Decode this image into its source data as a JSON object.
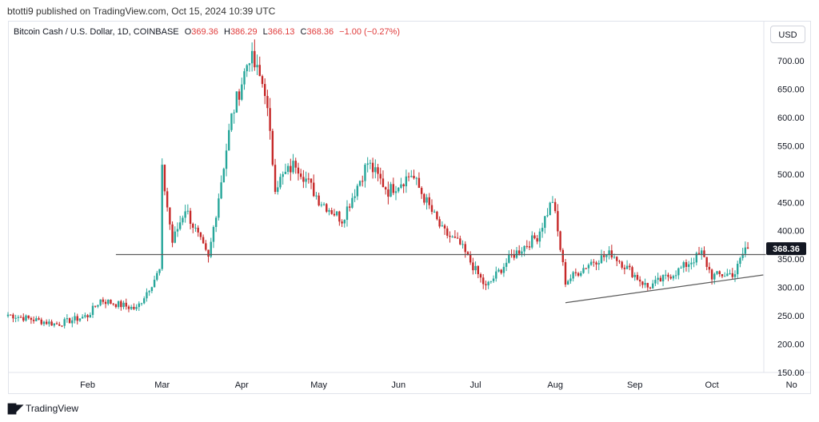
{
  "header": {
    "publisher": "btotti9 published on TradingView.com, Oct 15, 2024 10:39 UTC"
  },
  "legend": {
    "symbol": "Bitcoin Cash / U.S. Dollar, 1D, COINBASE",
    "open_label": "O",
    "open": "369.36",
    "high_label": "H",
    "high": "386.29",
    "low_label": "L",
    "low": "366.13",
    "close_label": "C",
    "close": "368.36",
    "change": "−1.00 (−0.27%)"
  },
  "currency_button": "USD",
  "footer": {
    "brand": "TradingView",
    "brand_icon": "tradingview-logo-icon"
  },
  "colors": {
    "up": "#26a69a",
    "down": "#c62828",
    "trendline": "#5b5b5b",
    "price_badge_bg": "#131722",
    "price_badge_text": "#ffffff"
  },
  "chart_data": {
    "type": "candlestick",
    "price_scale": {
      "ylim": [
        150,
        730
      ],
      "ticks": [
        "700.00",
        "650.00",
        "600.00",
        "550.00",
        "500.00",
        "450.00",
        "400.00",
        "350.00",
        "300.00",
        "250.00",
        "200.00",
        "150.00"
      ]
    },
    "time_axis": {
      "labels": [
        "Feb",
        "Mar",
        "Apr",
        "May",
        "Jun",
        "Jul",
        "Aug",
        "Sep",
        "Oct",
        "No"
      ]
    },
    "current_price_label": "368.36",
    "current_price": 368.36,
    "key_points": [
      {
        "date": "2024-01-01",
        "close": 252
      },
      {
        "date": "2024-01-20",
        "close": 235
      },
      {
        "date": "2024-02-01",
        "close": 250
      },
      {
        "date": "2024-02-06",
        "close": 278
      },
      {
        "date": "2024-02-20",
        "close": 262
      },
      {
        "date": "2024-02-29",
        "close": 330
      },
      {
        "date": "2024-03-01",
        "close": 505
      },
      {
        "date": "2024-03-05",
        "close": 380
      },
      {
        "date": "2024-03-10",
        "close": 440
      },
      {
        "date": "2024-03-19",
        "close": 350
      },
      {
        "date": "2024-03-28",
        "close": 600
      },
      {
        "date": "2024-04-04",
        "close": 710
      },
      {
        "date": "2024-04-10",
        "close": 650
      },
      {
        "date": "2024-04-14",
        "close": 480
      },
      {
        "date": "2024-04-22",
        "close": 520
      },
      {
        "date": "2024-05-01",
        "close": 455
      },
      {
        "date": "2024-05-10",
        "close": 420
      },
      {
        "date": "2024-05-20",
        "close": 520
      },
      {
        "date": "2024-05-28",
        "close": 470
      },
      {
        "date": "2024-06-06",
        "close": 500
      },
      {
        "date": "2024-06-18",
        "close": 400
      },
      {
        "date": "2024-06-25",
        "close": 375
      },
      {
        "date": "2024-07-05",
        "close": 300
      },
      {
        "date": "2024-07-15",
        "close": 355
      },
      {
        "date": "2024-07-25",
        "close": 390
      },
      {
        "date": "2024-07-31",
        "close": 455
      },
      {
        "date": "2024-08-05",
        "close": 310
      },
      {
        "date": "2024-08-15",
        "close": 345
      },
      {
        "date": "2024-08-23",
        "close": 360
      },
      {
        "date": "2024-09-06",
        "close": 300
      },
      {
        "date": "2024-09-18",
        "close": 330
      },
      {
        "date": "2024-09-27",
        "close": 360
      },
      {
        "date": "2024-10-01",
        "close": 320
      },
      {
        "date": "2024-10-10",
        "close": 325
      },
      {
        "date": "2024-10-14",
        "close": 370
      },
      {
        "date": "2024-10-15",
        "close": 368.36
      }
    ],
    "horizontal_line": {
      "price": 358
    },
    "trend_line": {
      "from": {
        "date": "2024-08-05",
        "price": 273
      },
      "to": {
        "date": "2024-10-21",
        "price": 322
      }
    }
  }
}
